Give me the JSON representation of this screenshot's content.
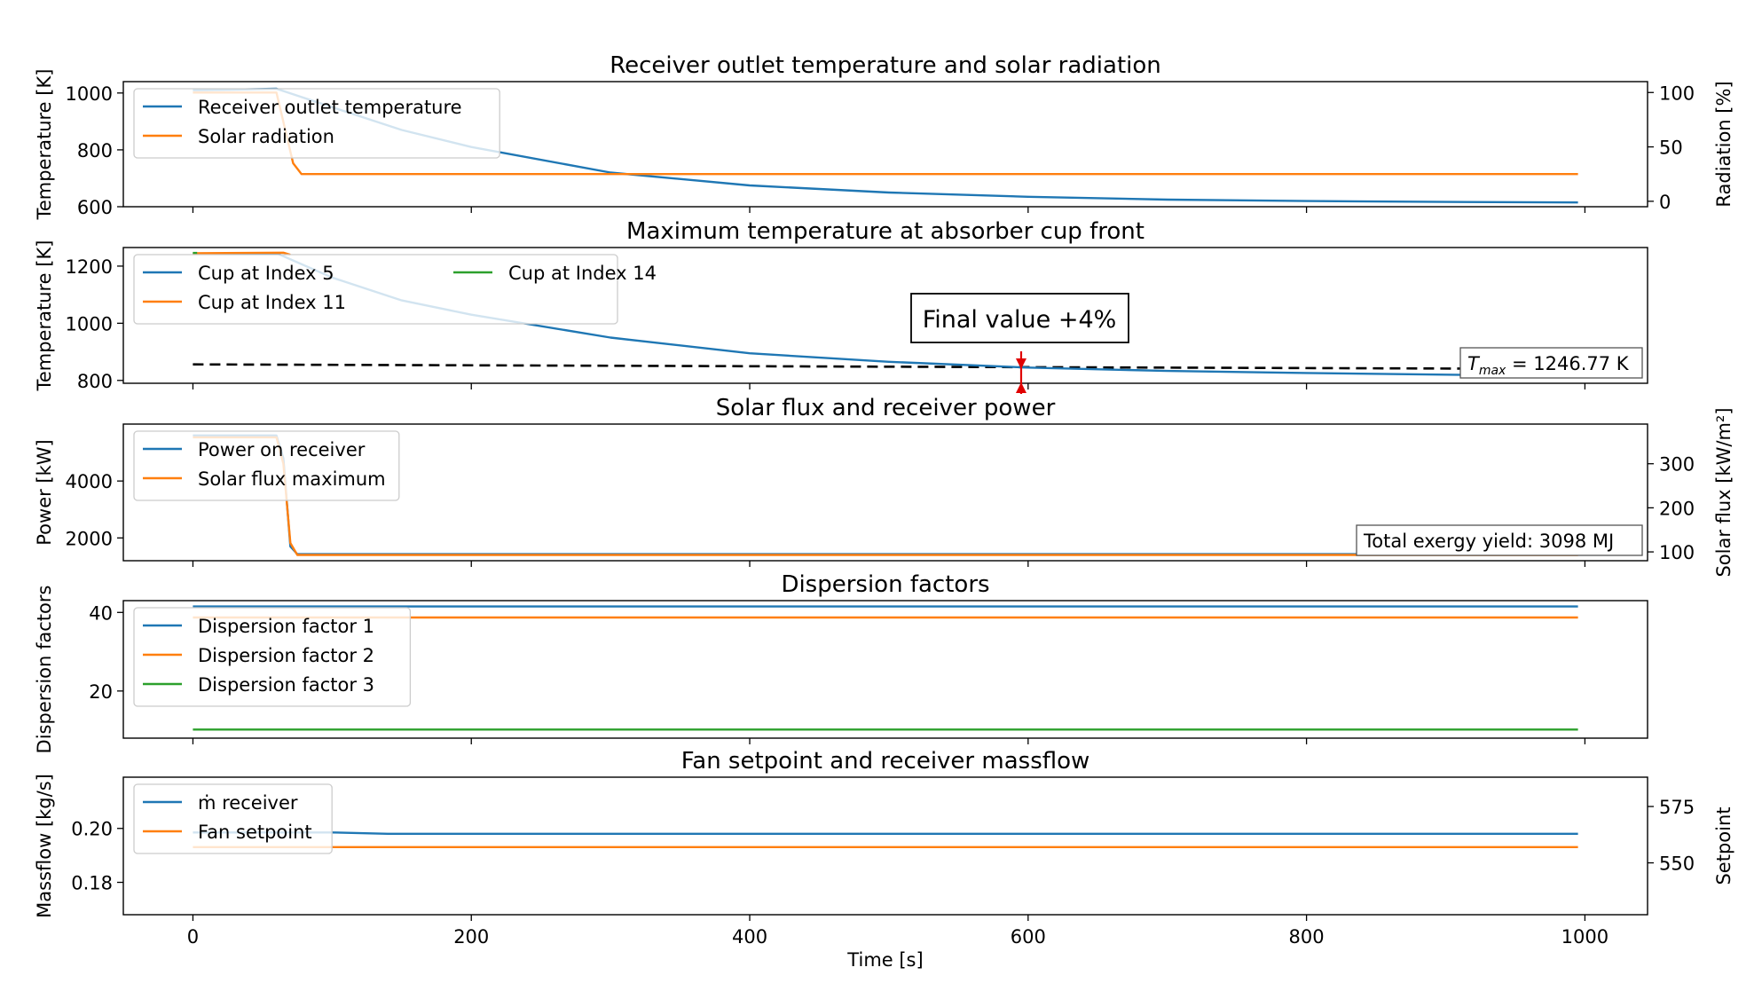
{
  "xaxis": {
    "label": "Time [s]",
    "ticks": [
      0,
      200,
      400,
      600,
      800,
      1000
    ],
    "range": [
      -50,
      1045
    ]
  },
  "colors": {
    "blue": "#1f77b4",
    "orange": "#ff7f0e",
    "green": "#2ca02c"
  },
  "annotation": {
    "text": "Final value +4%",
    "x": 595
  },
  "chart_data": [
    {
      "type": "line",
      "title": "Receiver outlet temperature and solar radiation",
      "ylabel": "Temperature [K]",
      "ylim": [
        600,
        1040
      ],
      "yticks": [
        600,
        800,
        1000
      ],
      "y2label": "Radiation [%]",
      "y2lim": [
        -5,
        110
      ],
      "y2ticks": [
        0,
        50,
        100
      ],
      "legend": "top-left",
      "legend_cols": 1,
      "series": [
        {
          "name": "Receiver outlet temperature",
          "axis": "left",
          "color": "blue",
          "x": [
            0,
            30,
            60,
            100,
            150,
            200,
            300,
            400,
            500,
            600,
            700,
            800,
            900,
            995
          ],
          "y": [
            1010,
            1012,
            1015,
            950,
            870,
            810,
            720,
            675,
            650,
            635,
            625,
            620,
            617,
            615
          ]
        },
        {
          "name": "Solar radiation",
          "axis": "right",
          "color": "orange",
          "x": [
            0,
            60,
            72,
            78,
            995
          ],
          "y": [
            100,
            100,
            35,
            25,
            25
          ]
        }
      ]
    },
    {
      "type": "line",
      "title": "Maximum temperature at absorber cup front",
      "ylabel": "Temperature [K]",
      "ylim": [
        790,
        1265
      ],
      "yticks": [
        800,
        1000,
        1200
      ],
      "legend": "top-left",
      "legend_cols": 2,
      "textbox": {
        "var": "T",
        "sub": "max",
        "rest": " = 1246.77 K",
        "position": "bottom-right"
      },
      "reference_line": {
        "x": [
          0,
          995
        ],
        "y": [
          856,
          840
        ]
      },
      "series": [
        {
          "name": "Cup at Index 5",
          "color": "blue",
          "x": [
            0,
            60,
            100,
            150,
            200,
            300,
            400,
            500,
            600,
            700,
            800,
            900,
            995
          ],
          "y": [
            1243,
            1245,
            1160,
            1080,
            1030,
            950,
            895,
            865,
            845,
            833,
            826,
            820,
            815
          ]
        },
        {
          "name": "Cup at Index 11",
          "color": "orange",
          "x": [
            0,
            65,
            70
          ],
          "y": [
            1245,
            1247,
            1240
          ]
        },
        {
          "name": "Cup at Index 14",
          "color": "green",
          "x": [
            0,
            3
          ],
          "y": [
            1246,
            1246
          ]
        }
      ]
    },
    {
      "type": "line",
      "title": "Solar flux and receiver power",
      "ylabel": "Power [kW]",
      "ylim": [
        1200,
        6000
      ],
      "yticks": [
        2000,
        4000
      ],
      "y2label": "Solar flux [kW/m²]",
      "y2lim": [
        80,
        390
      ],
      "y2ticks": [
        100,
        200,
        300
      ],
      "legend": "top-left",
      "legend_cols": 1,
      "textbox": {
        "text": "Total exergy yield: 3098 MJ",
        "position": "bottom-right"
      },
      "series": [
        {
          "name": "Power on receiver",
          "axis": "left",
          "color": "blue",
          "x": [
            0,
            60,
            65,
            70,
            75,
            995
          ],
          "y": [
            5600,
            5600,
            4800,
            1700,
            1430,
            1430
          ]
        },
        {
          "name": "Solar flux maximum",
          "axis": "right",
          "color": "orange",
          "x": [
            0,
            60,
            65,
            70,
            75,
            995
          ],
          "y": [
            360,
            360,
            300,
            120,
            93,
            93
          ]
        }
      ]
    },
    {
      "type": "line",
      "title": "Dispersion factors",
      "ylabel": "Dispersion factors",
      "ylim": [
        8,
        43
      ],
      "yticks": [
        20,
        40
      ],
      "legend": "top-left",
      "legend_cols": 1,
      "series": [
        {
          "name": "Dispersion factor 1",
          "color": "blue",
          "x": [
            0,
            995
          ],
          "y": [
            41.5,
            41.5
          ]
        },
        {
          "name": "Dispersion factor 2",
          "color": "orange",
          "x": [
            0,
            995
          ],
          "y": [
            38.7,
            38.7
          ]
        },
        {
          "name": "Dispersion factor 3",
          "color": "green",
          "x": [
            0,
            995
          ],
          "y": [
            10.2,
            10.2
          ]
        }
      ]
    },
    {
      "type": "line",
      "title": "Fan setpoint and receiver massflow",
      "ylabel": "Massflow [kg/s]",
      "ylim": [
        0.168,
        0.219
      ],
      "yticks": [
        0.18,
        0.2
      ],
      "y2label": "Setpoint",
      "y2lim": [
        527,
        588
      ],
      "y2ticks": [
        550,
        575
      ],
      "legend": "top-left",
      "legend_cols": 1,
      "series": [
        {
          "name": "ṁ receiver",
          "axis": "left",
          "color": "blue",
          "x": [
            0,
            100,
            140,
            995
          ],
          "y": [
            0.1985,
            0.1985,
            0.198,
            0.198
          ]
        },
        {
          "name": "Fan setpoint",
          "axis": "right",
          "color": "orange",
          "x": [
            0,
            995
          ],
          "y": [
            557.0,
            557.0
          ]
        }
      ]
    }
  ]
}
